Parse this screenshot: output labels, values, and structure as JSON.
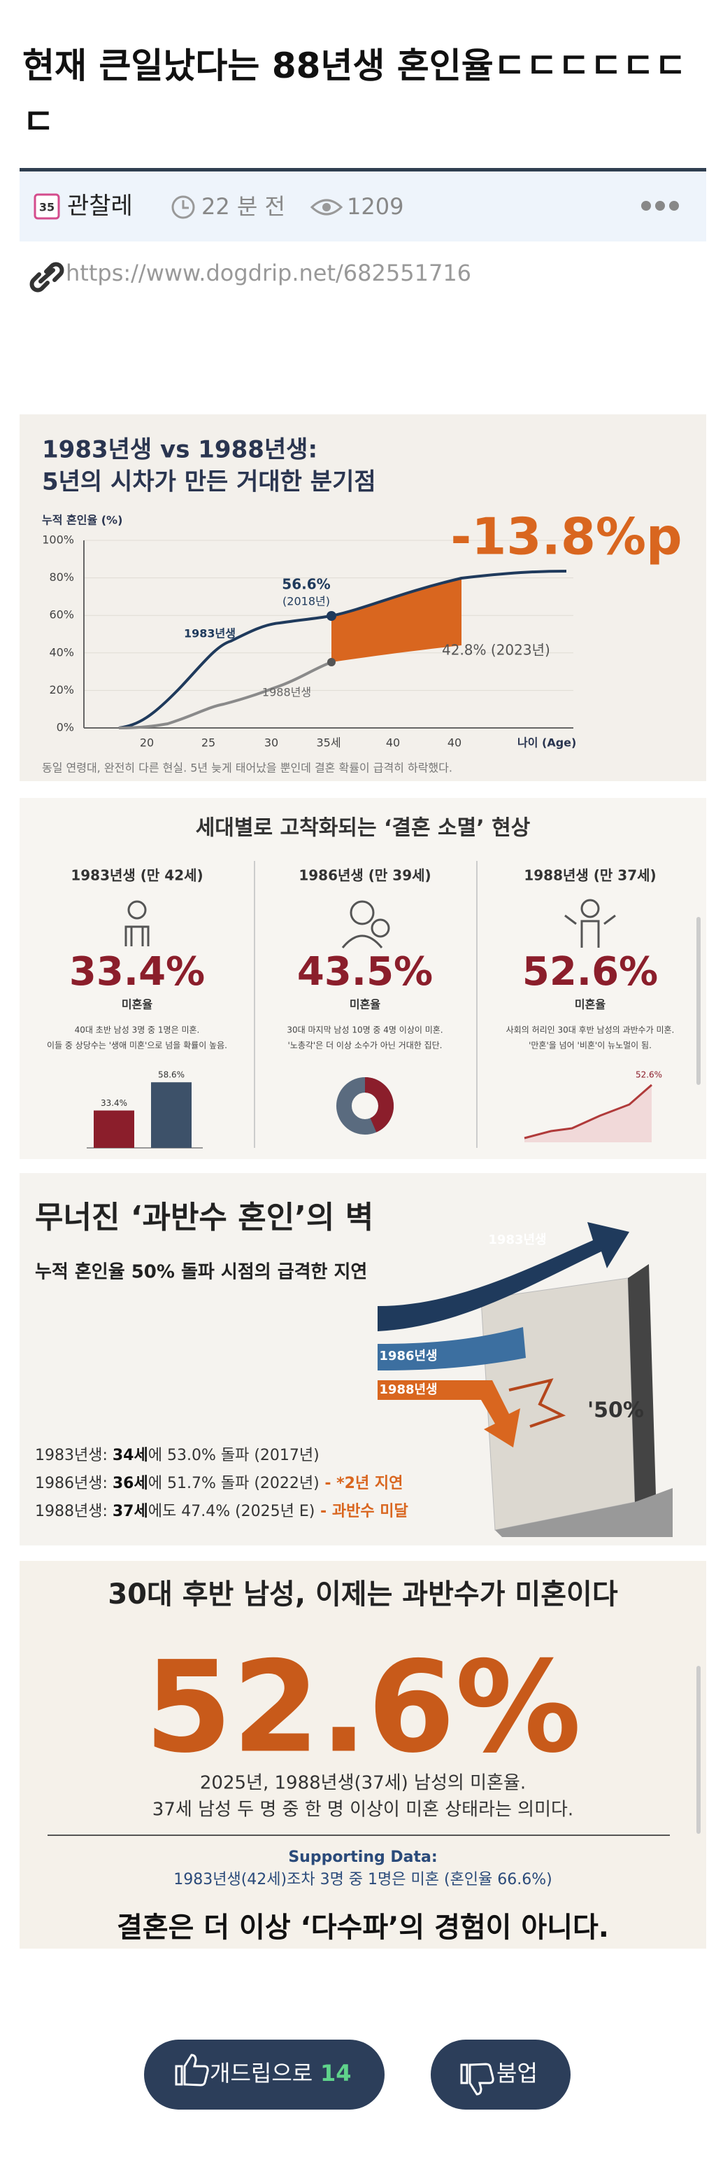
{
  "post": {
    "title": "현재 큰일났다는 88년생 혼인율ㄷㄷㄷㄷㄷㄷㄷ",
    "author_badge": "35",
    "author": "관찰레",
    "time": "22 분 전",
    "views": "1209",
    "url": "https://www.dogdrip.net/682551716"
  },
  "infographic_1": {
    "title_line1": "1983년생 vs 1988년생:",
    "title_line2": "5년의 시차가 만든 거대한 분기점",
    "y_axis_label": "누적 혼인율 (%)",
    "yticks": [
      "100%",
      "80%",
      "60%",
      "40%",
      "20%",
      "0%"
    ],
    "xticks": [
      "20",
      "25",
      "30",
      "35세",
      "40",
      "40"
    ],
    "x_axis_label": "나이 (Age)",
    "big_number": "-13.8%p",
    "series_1983": "1983년생",
    "series_1988": "1988년생",
    "point_label": "56.6%",
    "point_year": "(2018년)",
    "end_label": "42.8% (2023년)",
    "caption": "동일 연령대, 완전히 다른 현실. 5년 늦게 태어났을 뿐인데 결혼 확률이 급격히 하락했다."
  },
  "infographic_2": {
    "title": "세대별로 고착화되는 ‘결혼 소멸’ 현상",
    "columns": [
      {
        "header": "1983년생 (만 42세)",
        "value": "33.4%",
        "value_label": "미혼율",
        "desc_1": "40대 초반 남성 3명 중 1명은 미혼.",
        "desc_2": "이들 중 상당수는 '생애 미혼'으로 넘을 확률이 높음.",
        "chart_labels": [
          "33.4%",
          "58.6%"
        ]
      },
      {
        "header": "1986년생 (만 39세)",
        "value": "43.5%",
        "value_label": "미혼율",
        "desc_1": "30대 마지막 남성 10명 중 4명 이상이 미혼.",
        "desc_2": "'노총각'은 더 이상 소수가 아닌 거대한 집단."
      },
      {
        "header": "1988년생 (만 37세)",
        "value": "52.6%",
        "value_label": "미혼율",
        "desc_1": "사회의 허리인 30대 후반 남성의 과반수가 미혼.",
        "desc_2": "'만혼'을 넘어 '비혼'이 뉴노멀이 됨.",
        "chart_labels": [
          "52.6%"
        ]
      }
    ]
  },
  "infographic_3": {
    "title": "무너진 ‘과반수 혼인’의 벽",
    "subtitle": "누적 혼인율 50% 돌파 시점의 급격한 지연",
    "arrow_labels": [
      "1983년생",
      "1986년생",
      "1988년생"
    ],
    "wall_label": "'50%",
    "lines": [
      {
        "prefix": "1983년생: ",
        "bold": "34세",
        "rest": "에 53.0% 돌파 (2017년)"
      },
      {
        "prefix": "1986년생: ",
        "bold": "36세",
        "rest": "에 51.7% 돌파 (2022년)",
        "note": " - *2년 지연"
      },
      {
        "prefix": "1988년생: ",
        "bold": "37세",
        "rest": "에도 47.4% (2025년 E)",
        "note": " - 과반수 미달"
      }
    ]
  },
  "infographic_4": {
    "title": "30대 후반 남성, 이제는 과반수가 미혼이다",
    "big_number": "52.6%",
    "line_1": "2025년, 1988년생(37세) 남성의 미혼율.",
    "line_2": "37세 남성 두 명 중 한 명 이상이 미혼 상태라는 의미다.",
    "support_title": "Supporting Data:",
    "support_text": "1983년생(42세)조차 3명 중 1명은 미혼 (혼인율 66.6%)",
    "footer": "결혼은 더 이상 ‘다수파’의 경험이 아니다."
  },
  "buttons": {
    "upvote_label": "개드립으로",
    "upvote_count": "14",
    "downvote_label": "붐업"
  }
}
